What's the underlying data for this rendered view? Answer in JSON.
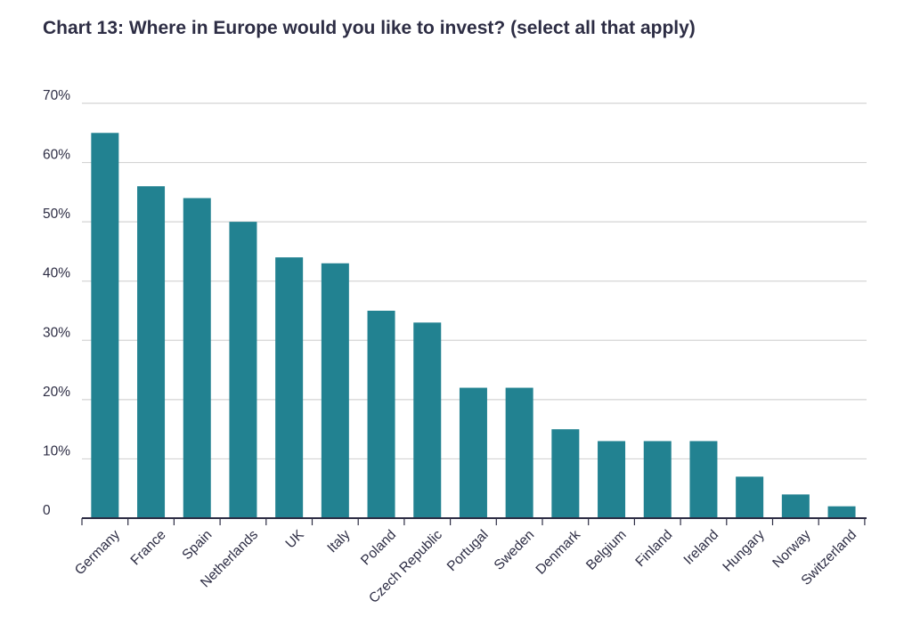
{
  "chart_data": {
    "type": "bar",
    "title": "Chart 13: Where in Europe would you like to invest? (select all that apply)",
    "xlabel": "",
    "ylabel": "",
    "categories": [
      "Germany",
      "France",
      "Spain",
      "Netherlands",
      "UK",
      "Italy",
      "Poland",
      "Czech Republic",
      "Portugal",
      "Sweden",
      "Denmark",
      "Belgium",
      "Finland",
      "Ireland",
      "Hungary",
      "Norway",
      "Switzerland"
    ],
    "values": [
      65,
      56,
      54,
      50,
      44,
      43,
      35,
      33,
      22,
      22,
      15,
      13,
      13,
      13,
      7,
      4,
      2
    ],
    "ylim": [
      0,
      70
    ],
    "yticks": [
      0,
      10,
      20,
      30,
      40,
      50,
      60,
      70
    ],
    "ytick_labels": [
      "0",
      "10%",
      "20%",
      "30%",
      "40%",
      "50%",
      "60%",
      "70%"
    ],
    "grid": true,
    "colors": {
      "bar": "#228291",
      "grid": "#d4d4d4",
      "axis": "#2d2d44",
      "text": "#2d2d44"
    }
  }
}
